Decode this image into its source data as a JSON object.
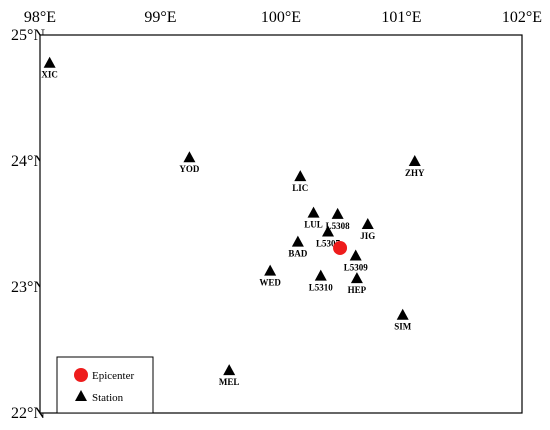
{
  "map": {
    "lon_range": [
      98,
      102
    ],
    "lat_range": [
      22,
      25
    ],
    "lon_ticks": [
      {
        "value": 98,
        "label": "98°E"
      },
      {
        "value": 99,
        "label": "99°E"
      },
      {
        "value": 100,
        "label": "100°E"
      },
      {
        "value": 101,
        "label": "101°E"
      },
      {
        "value": 102,
        "label": "102°E"
      }
    ],
    "lat_ticks": [
      {
        "value": 25,
        "label": "25°N"
      },
      {
        "value": 24,
        "label": "24°N"
      },
      {
        "value": 23,
        "label": "23°N"
      },
      {
        "value": 22,
        "label": "22°N"
      }
    ],
    "frame_color": "#000000"
  },
  "epicenter": {
    "lon": 100.49,
    "lat": 23.31,
    "color": "#ee1c1c"
  },
  "stations": [
    {
      "name": "XIC",
      "lon": 98.08,
      "lat": 24.78
    },
    {
      "name": "YOD",
      "lon": 99.24,
      "lat": 24.03
    },
    {
      "name": "LIC",
      "lon": 100.16,
      "lat": 23.88
    },
    {
      "name": "ZHY",
      "lon": 101.11,
      "lat": 24.0
    },
    {
      "name": "LUL",
      "lon": 100.27,
      "lat": 23.59
    },
    {
      "name": "L5308",
      "lon": 100.47,
      "lat": 23.58
    },
    {
      "name": "JIG",
      "lon": 100.72,
      "lat": 23.5
    },
    {
      "name": "L5307",
      "lon": 100.39,
      "lat": 23.44
    },
    {
      "name": "BAD",
      "lon": 100.14,
      "lat": 23.36
    },
    {
      "name": "L5309",
      "lon": 100.62,
      "lat": 23.25
    },
    {
      "name": "WED",
      "lon": 99.91,
      "lat": 23.13
    },
    {
      "name": "L5310",
      "lon": 100.33,
      "lat": 23.09
    },
    {
      "name": "HEP",
      "lon": 100.63,
      "lat": 23.07
    },
    {
      "name": "SIM",
      "lon": 101.01,
      "lat": 22.78
    },
    {
      "name": "MEL",
      "lon": 99.57,
      "lat": 22.34
    }
  ],
  "legend": {
    "items": [
      {
        "label": "Epicenter",
        "symbol": "circle",
        "color": "#ee1c1c"
      },
      {
        "label": "Station",
        "symbol": "triangle",
        "color": "#000000"
      }
    ]
  }
}
